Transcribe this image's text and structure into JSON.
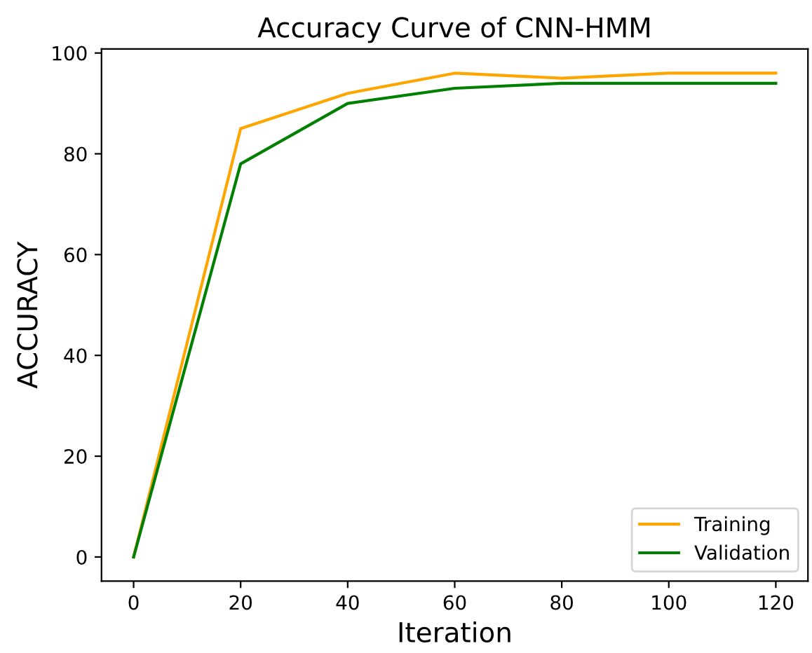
{
  "chart_data": {
    "type": "line",
    "title": "Accuracy Curve of CNN-HMM",
    "xlabel": "Iteration",
    "ylabel": "ACCURACY",
    "x": [
      0,
      20,
      40,
      60,
      80,
      100,
      120
    ],
    "series": [
      {
        "name": "Training",
        "color": "#ffa500",
        "values": [
          0,
          85,
          92,
          96,
          95,
          96,
          96
        ]
      },
      {
        "name": "Validation",
        "color": "#008000",
        "values": [
          0,
          78,
          90,
          93,
          94,
          94,
          94
        ]
      }
    ],
    "xlim": [
      -6,
      126
    ],
    "ylim": [
      -4.8,
      100.8
    ],
    "xticks": [
      0,
      20,
      40,
      60,
      80,
      100,
      120
    ],
    "yticks": [
      0,
      20,
      40,
      60,
      80,
      100
    ],
    "grid": false,
    "legend": "bottom right",
    "marker": "none",
    "line_style": "solid"
  }
}
